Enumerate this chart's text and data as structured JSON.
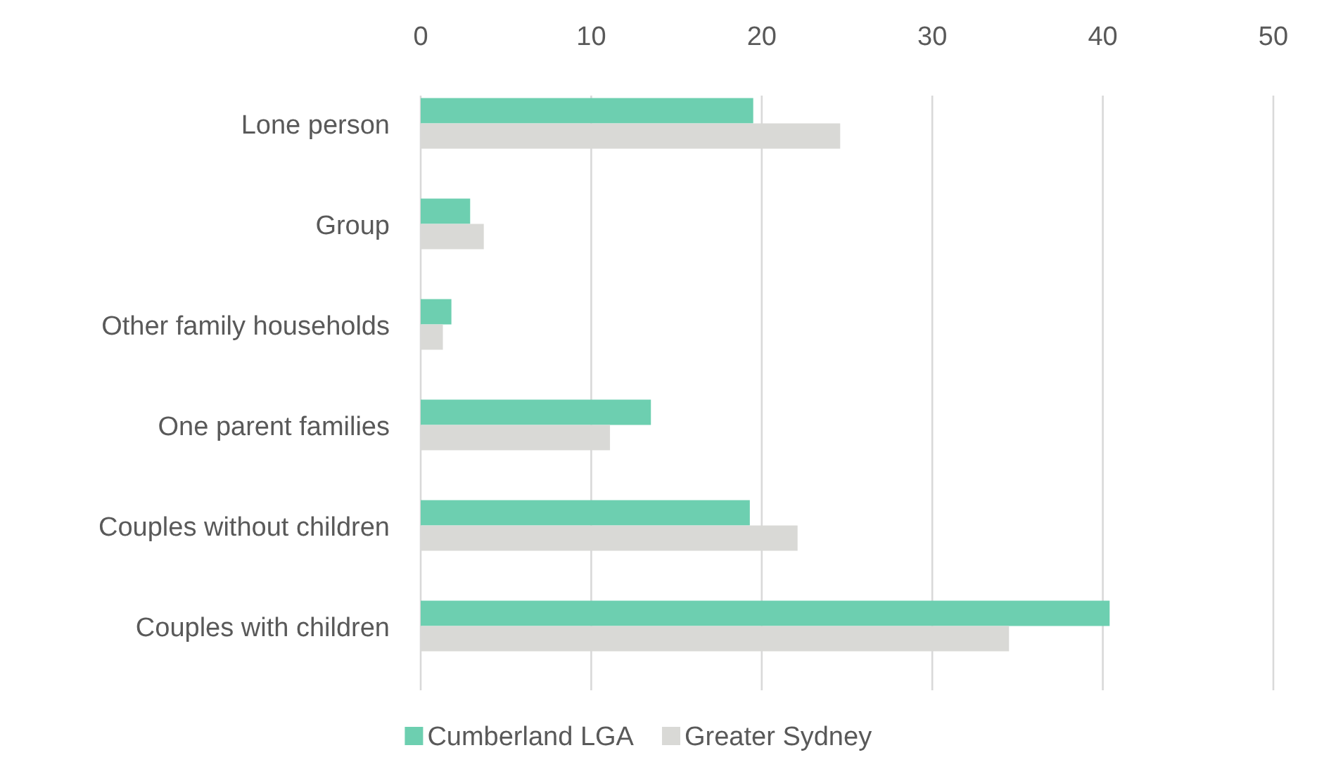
{
  "chart_data": {
    "type": "bar",
    "orientation": "horizontal",
    "categories": [
      "Lone person",
      "Group",
      "Other family households",
      "One parent families",
      "Couples without children",
      "Couples with children"
    ],
    "series": [
      {
        "name": "Cumberland LGA",
        "color": "#6dcfb0",
        "values": [
          19.5,
          2.9,
          1.8,
          13.5,
          19.3,
          40.4
        ]
      },
      {
        "name": "Greater Sydney",
        "color": "#d9d9d6",
        "values": [
          24.6,
          3.7,
          1.3,
          11.1,
          22.1,
          34.5
        ]
      }
    ],
    "xlim": [
      0,
      50
    ],
    "xticks": [
      0,
      10,
      20,
      30,
      40,
      50
    ],
    "grid": "x",
    "legend": "bottom"
  }
}
